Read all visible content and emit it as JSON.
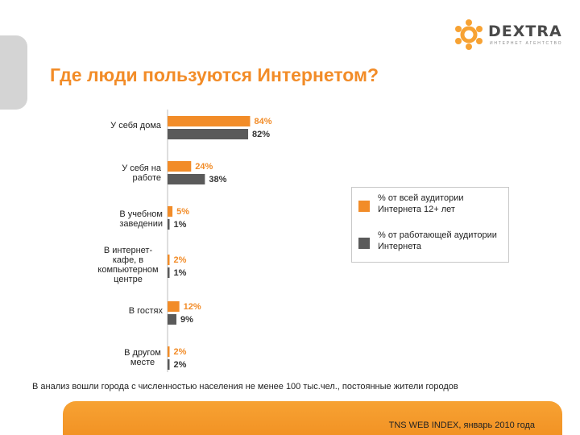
{
  "logo": {
    "name": "DEXTRA",
    "tagline": "ИНТЕРНЕТ АГЕНТСТВО",
    "icon": "gear-cluster-icon"
  },
  "title": "Где люди пользуются Интернетом?",
  "colors": {
    "orange": "#f28c28",
    "gray": "#5a5a5a",
    "accent": "#f08c1e"
  },
  "chart_data": {
    "type": "bar",
    "orientation": "horizontal",
    "categories": [
      "У себя дома",
      "У себя на работе",
      "В учебном заведении",
      "В интернет-кафе, в компьютерном центре",
      "В гостях",
      "В другом месте"
    ],
    "category_lines": [
      [
        "У себя дома"
      ],
      [
        "У себя на",
        "работе"
      ],
      [
        "В учебном",
        "заведении"
      ],
      [
        "В интернет-",
        "кафе, в",
        "компьютерном",
        "центре"
      ],
      [
        "В гостях"
      ],
      [
        "В другом",
        "месте"
      ]
    ],
    "series": [
      {
        "name": "% от всей аудитории Интернета 12+ лет",
        "color": "#f28c28",
        "values": [
          84,
          24,
          5,
          2,
          12,
          2
        ]
      },
      {
        "name": "% от работающей аудитории Интернета",
        "color": "#5a5a5a",
        "values": [
          82,
          38,
          1,
          1,
          9,
          2
        ]
      }
    ],
    "value_labels": [
      [
        "84%",
        "24%",
        "5%",
        "2%",
        "12%",
        "2%"
      ],
      [
        "82%",
        "38%",
        "1%",
        "1%",
        "9%",
        "2%"
      ]
    ],
    "xlim": [
      0,
      100
    ],
    "grid": false,
    "legend_position": "right"
  },
  "legend": {
    "items": [
      {
        "label": "% от всей аудитории Интернета 12+ лет",
        "color": "#f28c28"
      },
      {
        "label": "% от работающей аудитории Интернета",
        "color": "#5a5a5a"
      }
    ]
  },
  "note": "В анализ вошли города с  численностью населения не менее 100 тыс.чел.,  постоянные жители городов",
  "footer": {
    "source": "TNS WEB INDEX,  январь 2010 года"
  }
}
